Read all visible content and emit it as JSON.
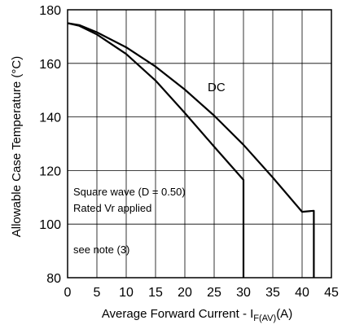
{
  "chart_data": {
    "type": "line",
    "xlabel": {
      "main": "Average Forward Current - I",
      "sub": "F(AV)",
      "unit": "(A)"
    },
    "ylabel": "Allowable Case Temperature (°C)",
    "xlim": [
      0,
      45
    ],
    "ylim": [
      80,
      180
    ],
    "xticks": [
      "0",
      "5",
      "10",
      "15",
      "20",
      "25",
      "30",
      "35",
      "40",
      "45"
    ],
    "yticks": [
      "80",
      "100",
      "120",
      "140",
      "160",
      "180"
    ],
    "grid": true,
    "series": [
      {
        "name": "DC",
        "x": [
          0,
          2,
          5,
          10,
          15,
          20,
          25,
          30,
          35,
          40,
          42,
          42
        ],
        "y": [
          175,
          174.3,
          171.6,
          166,
          158.8,
          150.2,
          140.5,
          129.6,
          117.4,
          104.6,
          105,
          80
        ]
      },
      {
        "name": "Square wave",
        "x": [
          0,
          2,
          5,
          10,
          15,
          20,
          25,
          30,
          30
        ],
        "y": [
          175,
          174,
          170.8,
          163.5,
          153.6,
          141.5,
          128.9,
          116.5,
          80
        ]
      }
    ],
    "annotations": {
      "dc": "DC",
      "square_wave": "Square wave (D = 0.50)",
      "rated_vr": "Rated Vr  applied",
      "note": "see note (3)"
    }
  }
}
